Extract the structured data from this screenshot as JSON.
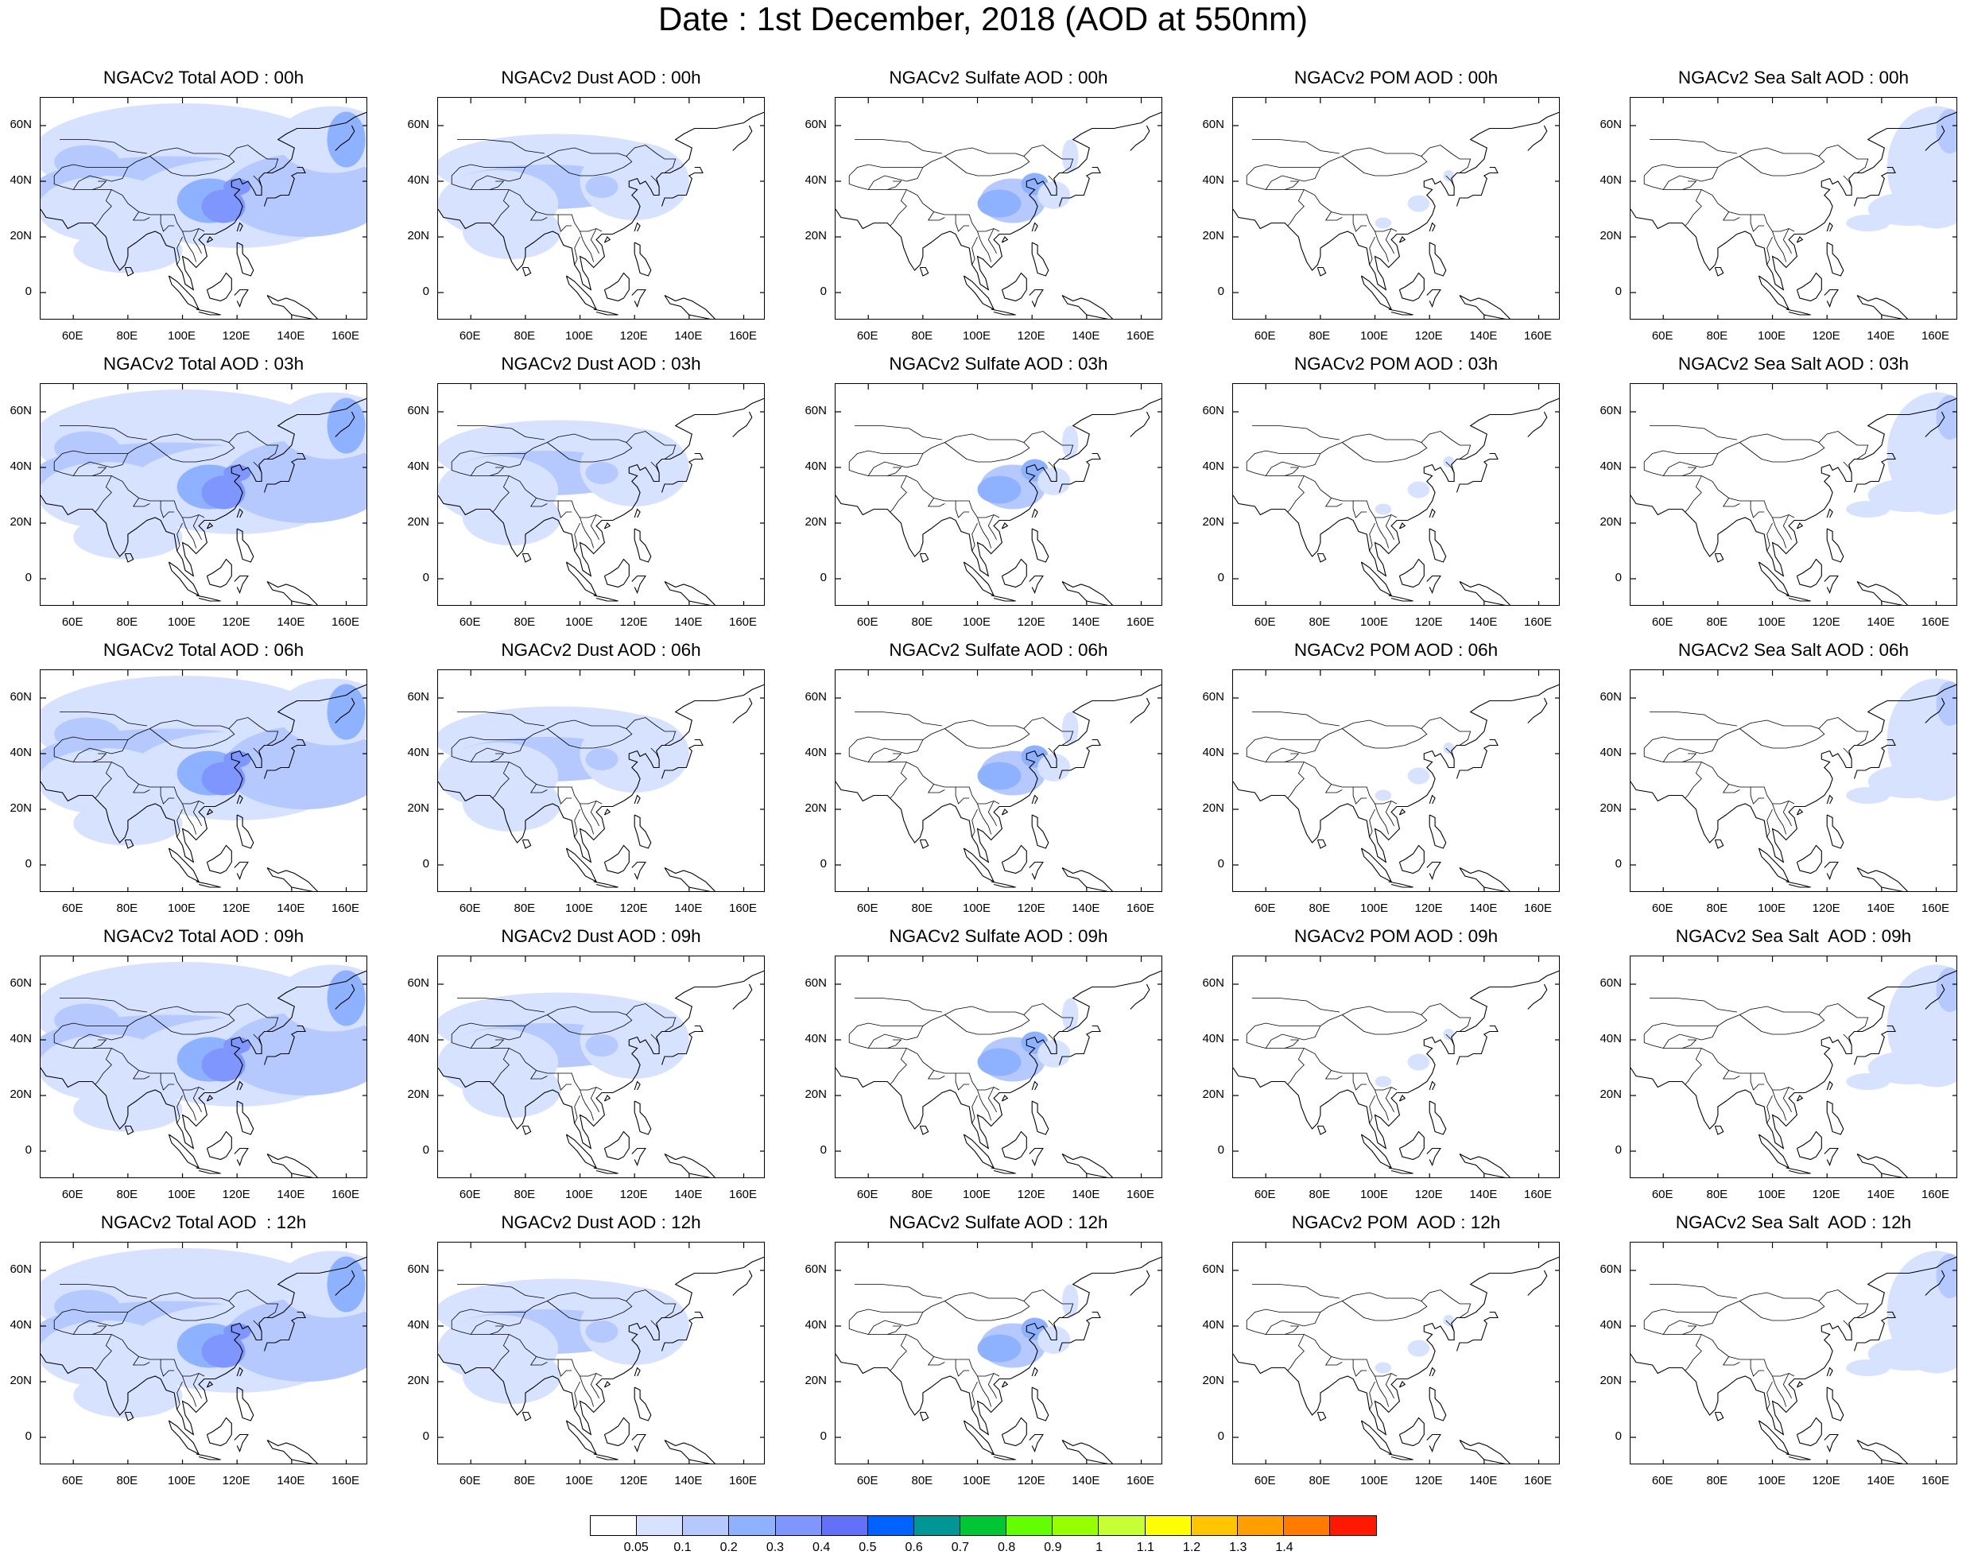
{
  "title": "Date : 1st December, 2018 (AOD at 550nm)",
  "panels": [
    [
      {
        "title": "NGACv2 Total AOD : 00h",
        "species": "total"
      },
      {
        "title": "NGACv2 Dust AOD : 00h",
        "species": "dust"
      },
      {
        "title": "NGACv2 Sulfate AOD : 00h",
        "species": "sulfate"
      },
      {
        "title": "NGACv2 POM AOD : 00h",
        "species": "pom"
      },
      {
        "title": "NGACv2 Sea Salt AOD : 00h",
        "species": "seasalt"
      }
    ],
    [
      {
        "title": "NGACv2 Total AOD : 03h",
        "species": "total"
      },
      {
        "title": "NGACv2 Dust AOD : 03h",
        "species": "dust"
      },
      {
        "title": "NGACv2 Sulfate AOD : 03h",
        "species": "sulfate"
      },
      {
        "title": "NGACv2 POM AOD : 03h",
        "species": "pom"
      },
      {
        "title": "NGACv2 Sea Salt AOD : 03h",
        "species": "seasalt"
      }
    ],
    [
      {
        "title": "NGACv2 Total AOD : 06h",
        "species": "total"
      },
      {
        "title": "NGACv2 Dust AOD : 06h",
        "species": "dust"
      },
      {
        "title": "NGACv2 Sulfate AOD : 06h",
        "species": "sulfate"
      },
      {
        "title": "NGACv2 POM AOD : 06h",
        "species": "pom"
      },
      {
        "title": "NGACv2 Sea Salt AOD : 06h",
        "species": "seasalt"
      }
    ],
    [
      {
        "title": "NGACv2 Total AOD : 09h",
        "species": "total"
      },
      {
        "title": "NGACv2 Dust AOD : 09h",
        "species": "dust"
      },
      {
        "title": "NGACv2 Sulfate AOD : 09h",
        "species": "sulfate"
      },
      {
        "title": "NGACv2 POM AOD : 09h",
        "species": "pom"
      },
      {
        "title": "NGACv2 Sea Salt  AOD : 09h",
        "species": "seasalt"
      }
    ],
    [
      {
        "title": "NGACv2 Total AOD  : 12h",
        "species": "total"
      },
      {
        "title": "NGACv2 Dust AOD : 12h",
        "species": "dust"
      },
      {
        "title": "NGACv2 Sulfate AOD : 12h",
        "species": "sulfate"
      },
      {
        "title": "NGACv2 POM  AOD : 12h",
        "species": "pom"
      },
      {
        "title": "NGACv2 Sea Salt  AOD : 12h",
        "species": "seasalt"
      }
    ]
  ],
  "axes": {
    "lat_ticks": [
      "60N",
      "40N",
      "20N",
      "0"
    ],
    "lon_ticks": [
      "60E",
      "80E",
      "100E",
      "120E",
      "140E",
      "160E"
    ]
  },
  "colorbar": {
    "colors": [
      "#ffffff",
      "#d6e2ff",
      "#b5c9ff",
      "#8eb2ff",
      "#7f96ff",
      "#6370f8",
      "#0063ff",
      "#009696",
      "#00c633",
      "#63ff00",
      "#96ff00",
      "#c6ff33",
      "#ffff00",
      "#ffc600",
      "#ffa000",
      "#ff7c00",
      "#ff1900"
    ],
    "labels": [
      "0.05",
      "0.1",
      "0.2",
      "0.3",
      "0.4",
      "0.5",
      "0.6",
      "0.7",
      "0.8",
      "0.9",
      "1",
      "1.1",
      "1.2",
      "1.3",
      "1.4"
    ]
  }
}
